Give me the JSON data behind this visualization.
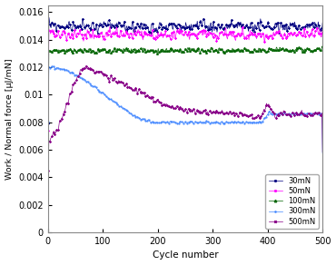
{
  "title": "",
  "xlabel": "Cycle number",
  "ylabel": "Work / Normal force [μJ/mN]",
  "xlim": [
    0,
    500
  ],
  "ylim": [
    0,
    0.0165
  ],
  "ytick_values": [
    0,
    0.002,
    0.004,
    0.006,
    0.008,
    0.01,
    0.012,
    0.014,
    0.016
  ],
  "ytick_labels": [
    "0",
    "0.002",
    "0.004",
    "0.006",
    "0.008",
    "0.01",
    "0.012",
    "0.014",
    "0.016"
  ],
  "xticks": [
    0,
    100,
    200,
    300,
    400,
    500
  ],
  "colors": {
    "30mN": "#000080",
    "50mN": "#FF00FF",
    "100mN": "#006400",
    "300mN": "#4488FF",
    "500mN": "#880088"
  },
  "legend_labels": [
    "30mN",
    "50mN",
    "100mN",
    "300mN",
    "500mN"
  ]
}
